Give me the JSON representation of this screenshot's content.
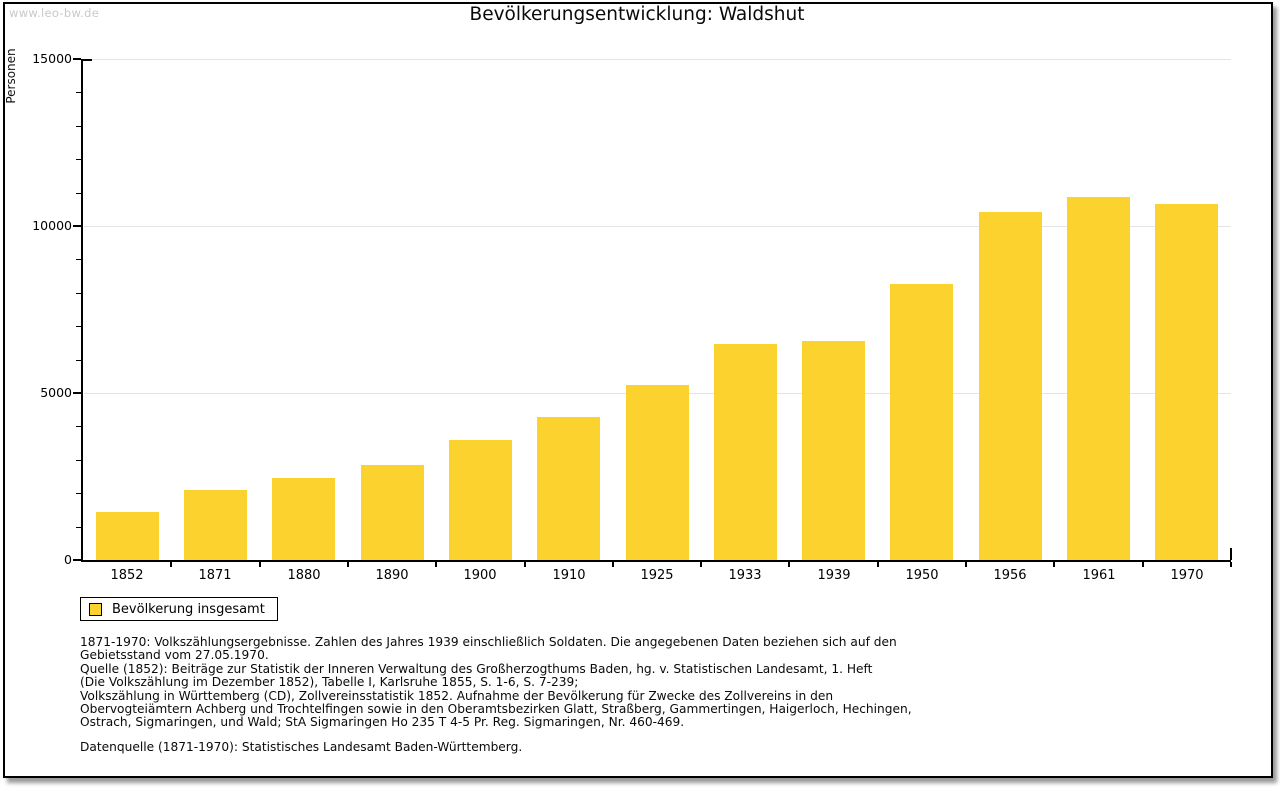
{
  "watermark": "www.leo-bw.de",
  "page": {
    "title": "Bevölkerungsentwicklung: Waldshut"
  },
  "chart_data": {
    "type": "bar",
    "title": "Bevölkerungsentwicklung: Waldshut",
    "xlabel": "",
    "ylabel": "Personen",
    "categories": [
      "1852",
      "1871",
      "1880",
      "1890",
      "1900",
      "1910",
      "1925",
      "1933",
      "1939",
      "1950",
      "1956",
      "1961",
      "1970"
    ],
    "values": [
      1440,
      2110,
      2460,
      2840,
      3590,
      4270,
      5250,
      6480,
      6550,
      8270,
      10420,
      10860,
      10660
    ],
    "series_name": "Bevölkerung insgesamt",
    "ylim": [
      0,
      15000
    ],
    "ytick_major": [
      0,
      5000,
      10000,
      15000
    ],
    "ytick_minor_step": 1000,
    "grid": "horizontal-major-only",
    "bar_color": "#FCD32E",
    "gridline_color": "#e4e4e4",
    "legend_position": "bottom-left"
  },
  "legend": {
    "label": "Bevölkerung insgesamt",
    "swatch_color": "#FCD32E"
  },
  "footnotes": {
    "blocks": [
      [
        "1871-1970: Volkszählungsergebnisse. Zahlen des Jahres 1939 einschließlich Soldaten. Die angegebenen Daten beziehen sich auf den",
        "Gebietsstand vom 27.05.1970.",
        "Quelle (1852): Beiträge zur Statistik der Inneren Verwaltung des Großherzogthums Baden, hg. v. Statistischen Landesamt, 1. Heft",
        "(Die Volkszählung im Dezember 1852), Tabelle I, Karlsruhe 1855, S. 1-6, S. 7-239;",
        "Volkszählung in Württemberg (CD), Zollvereinsstatistik 1852. Aufnahme der Bevölkerung für Zwecke des Zollvereins in den",
        "Obervogteiämtern Achberg und Trochtelfingen sowie in den Oberamtsbezirken Glatt, Straßberg, Gammertingen, Haigerloch, Hechingen,",
        "Ostrach, Sigmaringen, und Wald; StA Sigmaringen Ho 235 T 4-5 Pr. Reg. Sigmaringen, Nr. 460-469."
      ],
      [
        "Datenquelle (1871-1970): Statistisches Landesamt Baden-Württemberg."
      ]
    ]
  },
  "colors": {
    "bar": "#FCD32E",
    "gridline": "#e4e4e4",
    "axis": "#000000",
    "watermark_text": "#c9c9c9",
    "page_border": "#000000"
  }
}
